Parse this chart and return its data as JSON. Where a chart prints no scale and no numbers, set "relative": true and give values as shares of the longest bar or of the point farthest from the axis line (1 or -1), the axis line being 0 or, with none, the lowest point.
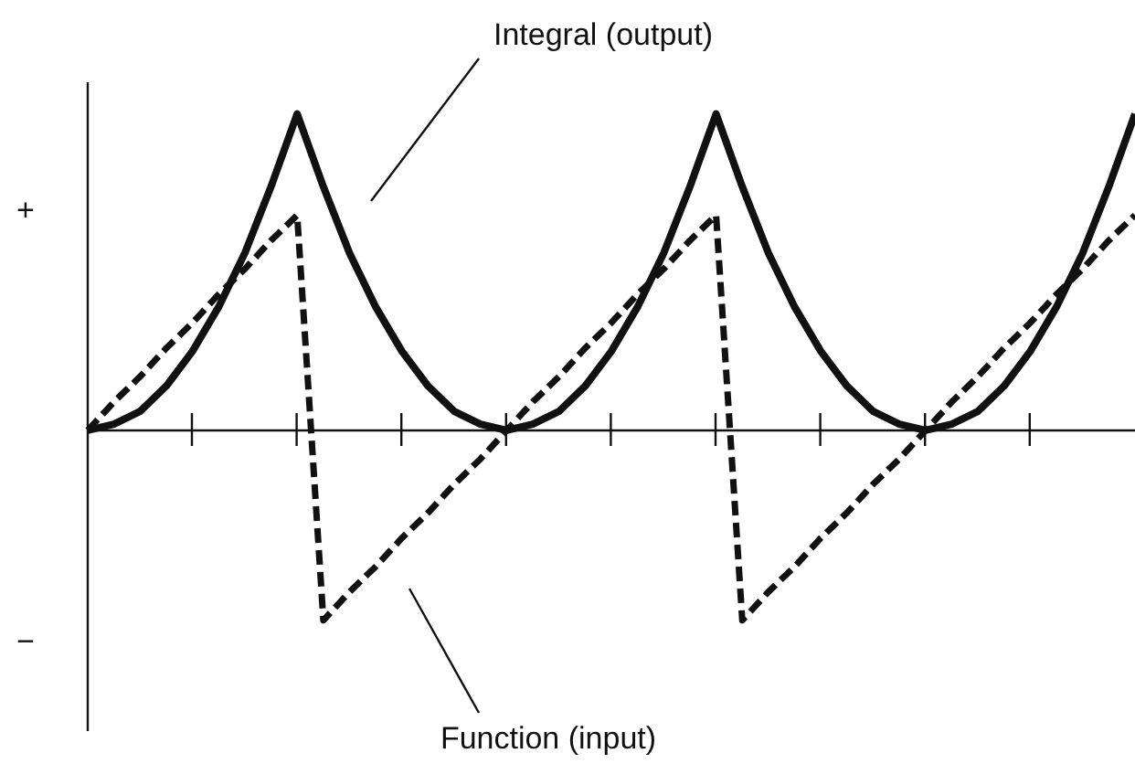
{
  "chart_data": {
    "type": "line",
    "relative": true,
    "legend": false,
    "marker": "none",
    "categories": [
      null,
      null,
      null,
      null,
      null,
      null,
      null,
      null,
      null,
      null,
      null,
      null,
      null,
      null,
      null,
      null,
      null,
      null,
      null,
      null,
      null,
      null,
      null,
      null,
      null,
      null,
      null,
      null,
      null,
      null,
      null,
      null,
      null,
      null,
      null,
      null,
      null,
      null,
      null,
      null,
      null
    ],
    "annotations": [
      "+",
      "−"
    ],
    "series": [
      {
        "name": "Integral (output)",
        "color": "#111111",
        "line_style": "solid",
        "values": [
          0,
          0.02,
          0.06,
          0.14,
          0.25,
          0.39,
          0.56,
          0.77,
          1,
          0.77,
          0.56,
          0.39,
          0.25,
          0.14,
          0.06,
          0.02,
          0,
          0.02,
          0.06,
          0.14,
          0.25,
          0.39,
          0.56,
          0.77,
          1,
          0.77,
          0.56,
          0.39,
          0.25,
          0.14,
          0.06,
          0.02,
          0,
          0.02,
          0.06,
          0.14,
          0.25,
          0.39,
          0.56,
          0.77,
          1
        ]
      },
      {
        "name": "Function (input)",
        "color": "#111111",
        "line_style": "dashed",
        "values": [
          0,
          0.09,
          0.17,
          0.26,
          0.34,
          0.43,
          0.51,
          0.6,
          0.68,
          -0.6,
          -0.51,
          -0.43,
          -0.34,
          -0.26,
          -0.17,
          -0.09,
          0,
          0.09,
          0.17,
          0.26,
          0.34,
          0.43,
          0.51,
          0.6,
          0.68,
          -0.6,
          -0.51,
          -0.43,
          -0.34,
          -0.26,
          -0.17,
          -0.09,
          0,
          0.09,
          0.17,
          0.26,
          0.34,
          0.43,
          0.51,
          0.6,
          0.68
        ]
      }
    ]
  }
}
